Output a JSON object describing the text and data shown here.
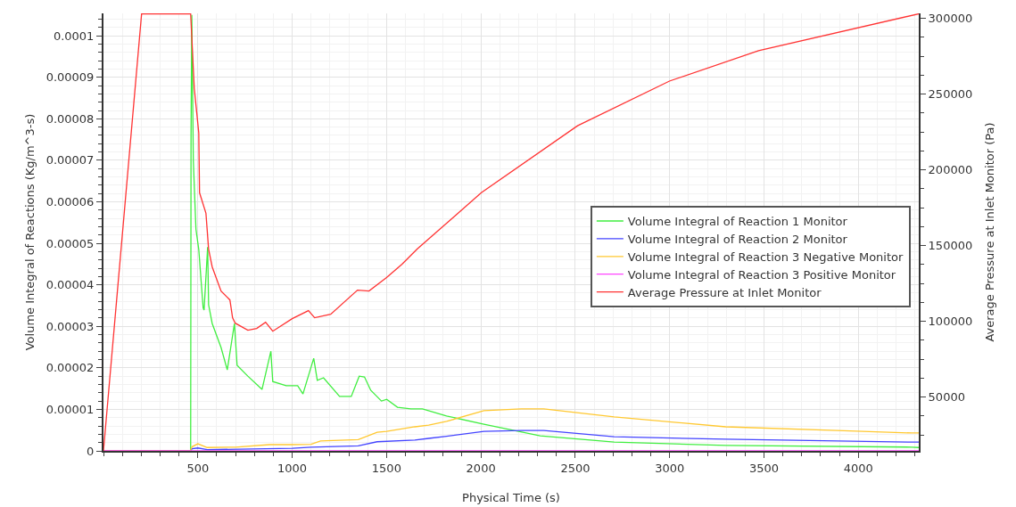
{
  "chart_data": {
    "type": "line",
    "xlabel": "Physical Time (s)",
    "ylabel": "Volume Integral of Reactions (Kg/m^3-s)",
    "y2label": "Average Pressure at Inlet Monitor (Pa)",
    "xlim": [
      0,
      4320
    ],
    "xticks": [
      500,
      1000,
      1500,
      2000,
      2500,
      3000,
      3500,
      4000
    ],
    "ylim": [
      0,
      0.0001054
    ],
    "yticks": [
      {
        "value": 0,
        "label": "0"
      },
      {
        "value": 1e-05,
        "label": "0.00001"
      },
      {
        "value": 2e-05,
        "label": "0.00002"
      },
      {
        "value": 3e-05,
        "label": "0.00003"
      },
      {
        "value": 4e-05,
        "label": "0.00004"
      },
      {
        "value": 5e-05,
        "label": "0.00005"
      },
      {
        "value": 6e-05,
        "label": "0.00006"
      },
      {
        "value": 7e-05,
        "label": "0.00007"
      },
      {
        "value": 8e-05,
        "label": "0.00008"
      },
      {
        "value": 9e-05,
        "label": "0.00009"
      },
      {
        "value": 0.0001,
        "label": "0.0001"
      }
    ],
    "y2lim": [
      14500,
      303300
    ],
    "y2ticks": [
      50000,
      100000,
      150000,
      200000,
      250000,
      300000
    ],
    "grid": true,
    "legend": "right",
    "marker": "none",
    "line_style": "solid",
    "series": [
      {
        "name": "Volume Integral of Reaction 1 Monitor",
        "color": "#40ee40",
        "x": [
          0,
          460,
          462,
          464,
          468,
          476,
          490,
          505,
          528,
          533,
          552,
          557,
          576,
          623,
          656,
          694,
          708,
          765,
          840,
          887,
          897,
          968,
          1029,
          1057,
          1114,
          1133,
          1166,
          1251,
          1313,
          1355,
          1383,
          1416,
          1473,
          1501,
          1558,
          1629,
          1690,
          1818,
          2016,
          2314,
          2706,
          3297,
          4284,
          4320
        ],
        "values": [
          0,
          0,
          0,
          7.58e-05,
          0.000105,
          7e-05,
          5.34e-05,
          4.85e-05,
          3.45e-05,
          3.39e-05,
          4.91e-05,
          3.52e-05,
          3.07e-05,
          2.49e-05,
          1.95e-05,
          3.07e-05,
          2.06e-05,
          1.8e-05,
          1.48e-05,
          2.4e-05,
          1.67e-05,
          1.57e-05,
          1.57e-05,
          1.37e-05,
          2.23e-05,
          1.7e-05,
          1.76e-05,
          1.31e-05,
          1.31e-05,
          1.8e-05,
          1.78e-05,
          1.46e-05,
          1.2e-05,
          1.24e-05,
          1.05e-05,
          1.01e-05,
          1.01e-05,
          8.4e-06,
          6.4e-06,
          3.6e-06,
          2.1e-06,
          1.3e-06,
          9e-07,
          8e-07
        ]
      },
      {
        "name": "Volume Integral of Reaction 2 Monitor",
        "color": "#4444ff",
        "x": [
          0,
          460,
          470,
          500,
          550,
          1000,
          1100,
          1350,
          1450,
          1650,
          1723,
          1818,
          2016,
          2214,
          2333,
          2706,
          3297,
          3887,
          4284,
          4320
        ],
        "values": [
          0,
          0,
          5e-07,
          7e-07,
          3e-07,
          6e-07,
          9e-07,
          1.2e-06,
          2.2e-06,
          2.6e-06,
          3e-06,
          3.5e-06,
          4.7e-06,
          4.9e-06,
          4.9e-06,
          3.4e-06,
          2.8e-06,
          2.4e-06,
          2.1e-06,
          2.1e-06
        ]
      },
      {
        "name": "Volume Integral of Reaction 3 Negative Monitor",
        "color": "#ffc830",
        "x": [
          0,
          460,
          470,
          500,
          550,
          700,
          880,
          1000,
          1100,
          1150,
          1350,
          1450,
          1500,
          1650,
          1723,
          1818,
          2016,
          2214,
          2333,
          2706,
          3297,
          3887,
          4284,
          4320
        ],
        "values": [
          0,
          0,
          1e-06,
          1.7e-06,
          8e-07,
          9e-07,
          1.5e-06,
          1.5e-06,
          1.6e-06,
          2.4e-06,
          2.7e-06,
          4.5e-06,
          4.7e-06,
          5.8e-06,
          6.2e-06,
          7.1e-06,
          9.7e-06,
          1.01e-05,
          1.01e-05,
          8.2e-06,
          5.8e-06,
          4.9e-06,
          4.3e-06,
          4.3e-06
        ]
      },
      {
        "name": "Volume Integral of Reaction 3 Positive Monitor",
        "color": "#ff44ff",
        "x": [
          0,
          4320
        ],
        "values": [
          0,
          0
        ]
      },
      {
        "name": "Average Pressure at Inlet Monitor",
        "color": "#ff3333",
        "axis": "y2",
        "x": [
          0,
          202,
          462,
          481,
          505,
          509,
          543,
          557,
          576,
          623,
          670,
          684,
          698,
          765,
          812,
          859,
          897,
          1000,
          1086,
          1119,
          1204,
          1346,
          1407,
          1500,
          1582,
          1662,
          2002,
          2512,
          2999,
          3471,
          4320
        ],
        "values": [
          14500,
          303000,
          303000,
          253900,
          224400,
          184900,
          171300,
          147700,
          135960,
          120000,
          114100,
          102400,
          98800,
          94100,
          95300,
          99400,
          93500,
          101800,
          107100,
          102400,
          104700,
          120600,
          120000,
          128900,
          137700,
          147700,
          184900,
          229100,
          258600,
          278600,
          303000
        ]
      }
    ]
  }
}
